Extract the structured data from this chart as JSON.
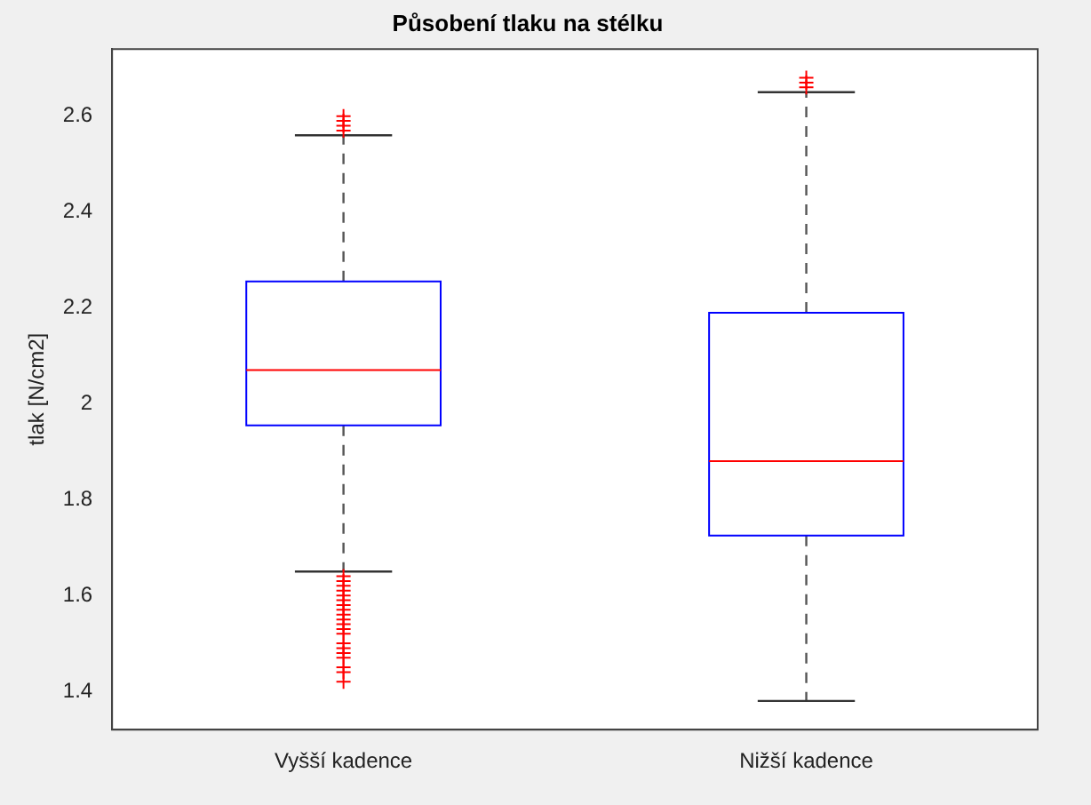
{
  "chart_data": {
    "type": "box",
    "title": "Působení tlaku na stélku",
    "ylabel": "tlak [N/cm2]",
    "categories": [
      "Vyšší kadence",
      "Nižší kadence"
    ],
    "ylim": [
      1.32,
      2.74
    ],
    "yticks": [
      1.4,
      1.6,
      1.8,
      2,
      2.2,
      2.4,
      2.6
    ],
    "grid": false,
    "marker": "cross",
    "series": [
      {
        "color": "#0000ff",
        "boxes": [
          {
            "low": 1.65,
            "q1": 1.955,
            "median": 2.07,
            "q3": 2.255,
            "high": 2.56,
            "outliers": [
              2.57,
              2.58,
              2.59,
              2.6,
              1.64,
              1.63,
              1.62,
              1.61,
              1.6,
              1.59,
              1.58,
              1.57,
              1.56,
              1.55,
              1.54,
              1.53,
              1.52,
              1.5,
              1.49,
              1.48,
              1.47,
              1.45,
              1.44,
              1.42
            ]
          },
          {
            "low": 1.38,
            "q1": 1.725,
            "median": 1.88,
            "q3": 2.19,
            "high": 2.65,
            "outliers": [
              2.66,
              2.67,
              2.68
            ]
          }
        ]
      }
    ]
  }
}
